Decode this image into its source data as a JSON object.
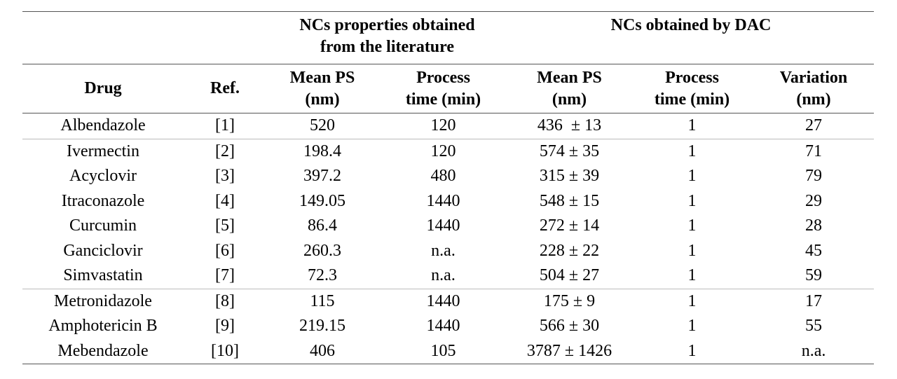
{
  "header": {
    "groups": [
      {
        "lines": [
          "NCs properties obtained",
          "from the literature"
        ]
      },
      {
        "lines": [
          "NCs obtained by DAC"
        ]
      }
    ],
    "columns": [
      [
        "Drug"
      ],
      [
        "Ref."
      ],
      [
        "Mean PS",
        "(nm)"
      ],
      [
        "Process",
        "time (min)"
      ],
      [
        "Mean PS",
        "(nm)"
      ],
      [
        "Process",
        "time (min)"
      ],
      [
        "Variation",
        "(nm)"
      ]
    ]
  },
  "table": {
    "rows": [
      [
        "Albendazole",
        "[1]",
        "520",
        "120",
        "436  ± 13",
        "1",
        "27"
      ],
      [
        "Ivermectin",
        "[2]",
        "198.4",
        "120",
        "574 ± 35",
        "1",
        "71"
      ],
      [
        "Acyclovir",
        "[3]",
        "397.2",
        "480",
        "315 ± 39",
        "1",
        "79"
      ],
      [
        "Itraconazole",
        "[4]",
        "149.05",
        "1440",
        "548 ± 15",
        "1",
        "29"
      ],
      [
        "Curcumin",
        "[5]",
        "86.4",
        "1440",
        "272 ± 14",
        "1",
        "28"
      ],
      [
        "Ganciclovir",
        "[6]",
        "260.3",
        "n.a.",
        "228 ± 22",
        "1",
        "45"
      ],
      [
        "Simvastatin",
        "[7]",
        "72.3",
        "n.a.",
        "504 ± 27",
        "1",
        "59"
      ],
      [
        "Metronidazole",
        "[8]",
        "115",
        "1440",
        "175 ± 9",
        "1",
        "17"
      ],
      [
        "Amphotericin B",
        "[9]",
        "219.15",
        "1440",
        "566 ± 30",
        "1",
        "55"
      ],
      [
        "Mebendazole",
        "[10]",
        "406",
        "105",
        "3787 ± 1426",
        "1",
        "n.a."
      ]
    ]
  }
}
